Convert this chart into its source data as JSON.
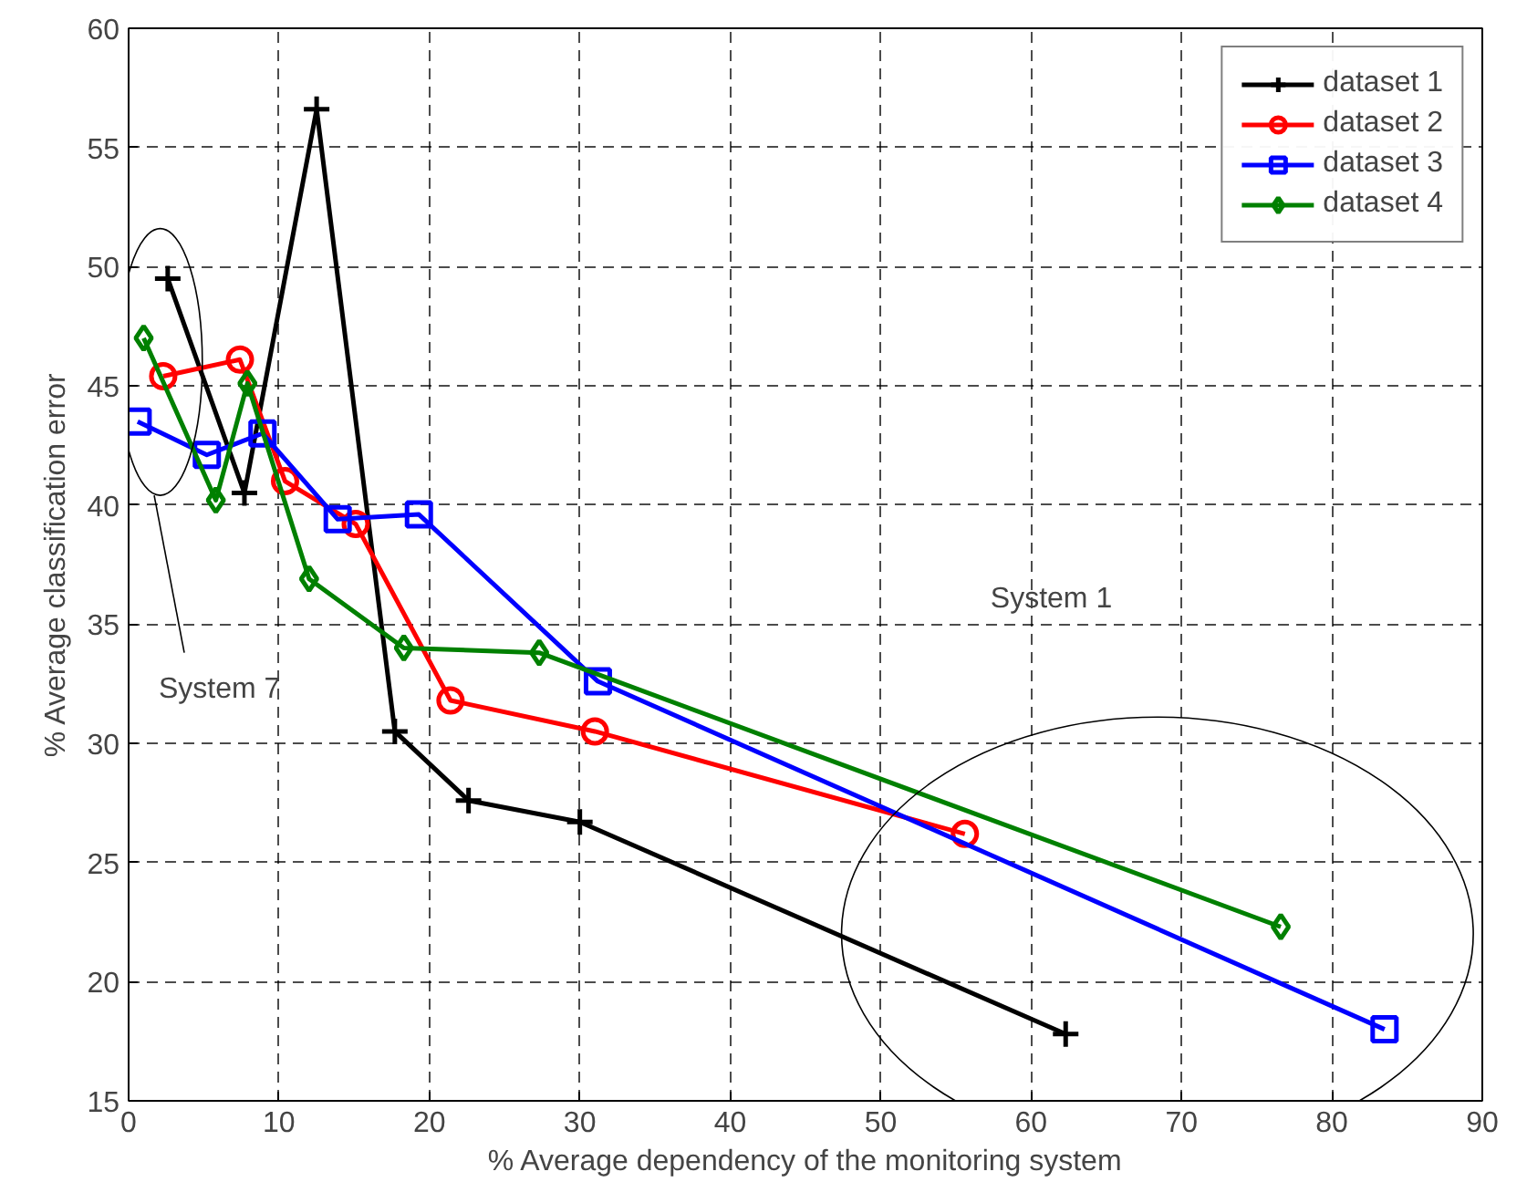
{
  "chart_data": {
    "type": "line",
    "xlabel": "% Average dependency of the monitoring system",
    "ylabel": "% Average classification error",
    "xlim": [
      0,
      90
    ],
    "ylim": [
      15,
      60
    ],
    "xticks": [
      0,
      10,
      20,
      30,
      40,
      50,
      60,
      70,
      80,
      90
    ],
    "yticks": [
      15,
      20,
      25,
      30,
      35,
      40,
      45,
      50,
      55,
      60
    ],
    "grid": true,
    "legend": "top right",
    "series": [
      {
        "name": "dataset 1",
        "color": "#000000",
        "marker": "cross",
        "x": [
          2.6,
          7.7,
          12.5,
          17.7,
          22.6,
          30.0,
          62.3
        ],
        "values": [
          49.5,
          40.5,
          56.6,
          30.5,
          27.6,
          26.7,
          17.8
        ]
      },
      {
        "name": "dataset 2",
        "color": "#ff0000",
        "marker": "circle",
        "x": [
          2.3,
          7.4,
          10.4,
          15.1,
          21.4,
          31.0,
          55.6
        ],
        "values": [
          45.4,
          46.1,
          41.0,
          39.2,
          31.8,
          30.5,
          26.2
        ]
      },
      {
        "name": "dataset 3",
        "color": "#0000ff",
        "marker": "square",
        "x": [
          0.6,
          5.2,
          8.9,
          13.9,
          19.3,
          31.2,
          83.5
        ],
        "values": [
          43.5,
          42.1,
          43.0,
          39.4,
          39.6,
          32.6,
          18.0
        ]
      },
      {
        "name": "dataset 4",
        "color": "#008000",
        "marker": "diamond",
        "x": [
          1.0,
          5.8,
          7.9,
          12.0,
          18.3,
          27.3,
          76.6
        ],
        "values": [
          47.0,
          40.2,
          45.1,
          36.9,
          34.0,
          33.8,
          22.3
        ]
      }
    ],
    "annotations": [
      "System 7",
      "System 1"
    ]
  }
}
